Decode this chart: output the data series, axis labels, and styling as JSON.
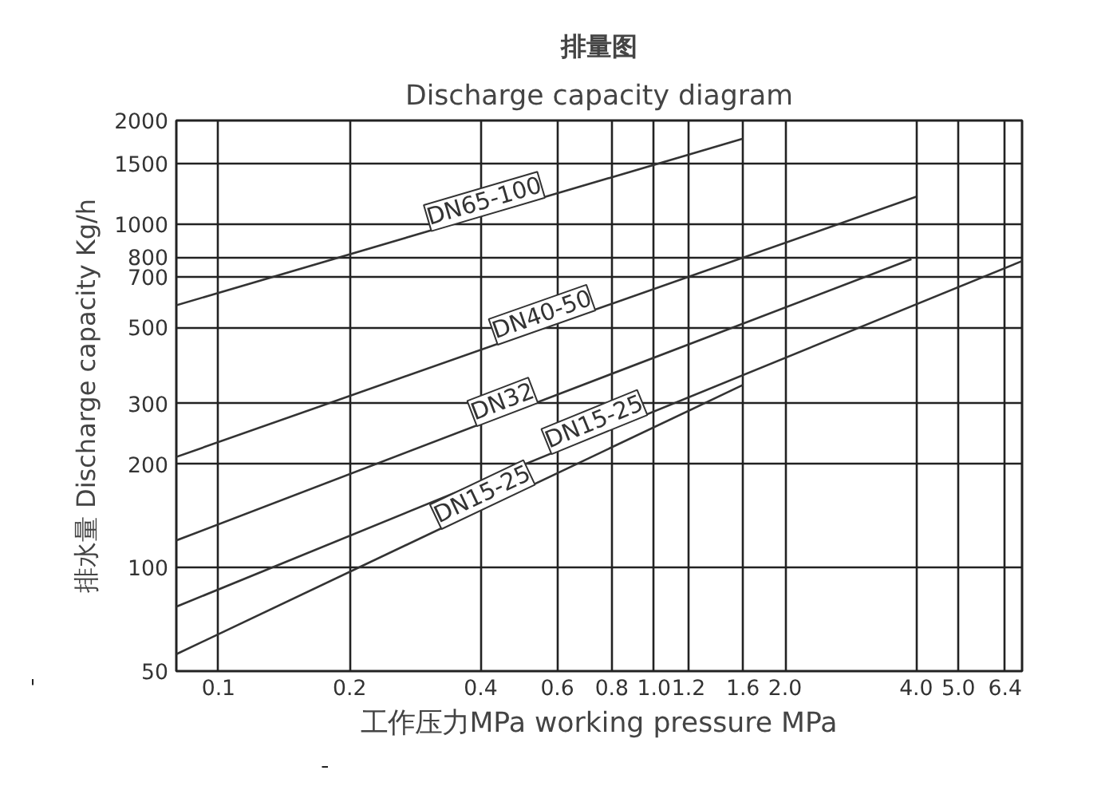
{
  "chart_data": {
    "type": "line",
    "title": "排量图",
    "subtitle": "Discharge capacity diagram",
    "xlabel": "工作压力MPa working pressure MPa",
    "ylabel": "排水量 Discharge capacity Kg/h",
    "log": "xy",
    "grid": true,
    "xlim": [
      0.08,
      7
    ],
    "ylim": [
      50,
      2000
    ],
    "xticks": [
      0.1,
      0.2,
      0.4,
      0.6,
      0.8,
      {
        "value": 1,
        "label": "1.0"
      },
      1.2,
      1.6,
      {
        "value": 2,
        "label": "2.0"
      },
      {
        "value": 4,
        "label": "4.0"
      },
      {
        "value": 5,
        "label": "5.0"
      },
      6.4
    ],
    "yticks": [
      50,
      100,
      200,
      300,
      500,
      700,
      800,
      1000,
      1500,
      2000
    ],
    "series": [
      {
        "name": "DN65-100",
        "color": "#333333",
        "x": [
          0.08,
          1.6
        ],
        "values": [
          580,
          1770
        ]
      },
      {
        "name": "DN40-50",
        "color": "#333333",
        "x": [
          0.08,
          4.0
        ],
        "values": [
          210,
          1200
        ]
      },
      {
        "name": "DN32",
        "color": "#333333",
        "x": [
          0.08,
          3.9
        ],
        "values": [
          120,
          790
        ]
      },
      {
        "name": "DN15-25",
        "color": "#333333",
        "x": [
          0.08,
          7
        ],
        "values": [
          77,
          780
        ]
      },
      {
        "name": "DN15-25",
        "color": "#333333",
        "x": [
          0.08,
          1.6
        ],
        "values": [
          56,
          340
        ]
      }
    ]
  }
}
